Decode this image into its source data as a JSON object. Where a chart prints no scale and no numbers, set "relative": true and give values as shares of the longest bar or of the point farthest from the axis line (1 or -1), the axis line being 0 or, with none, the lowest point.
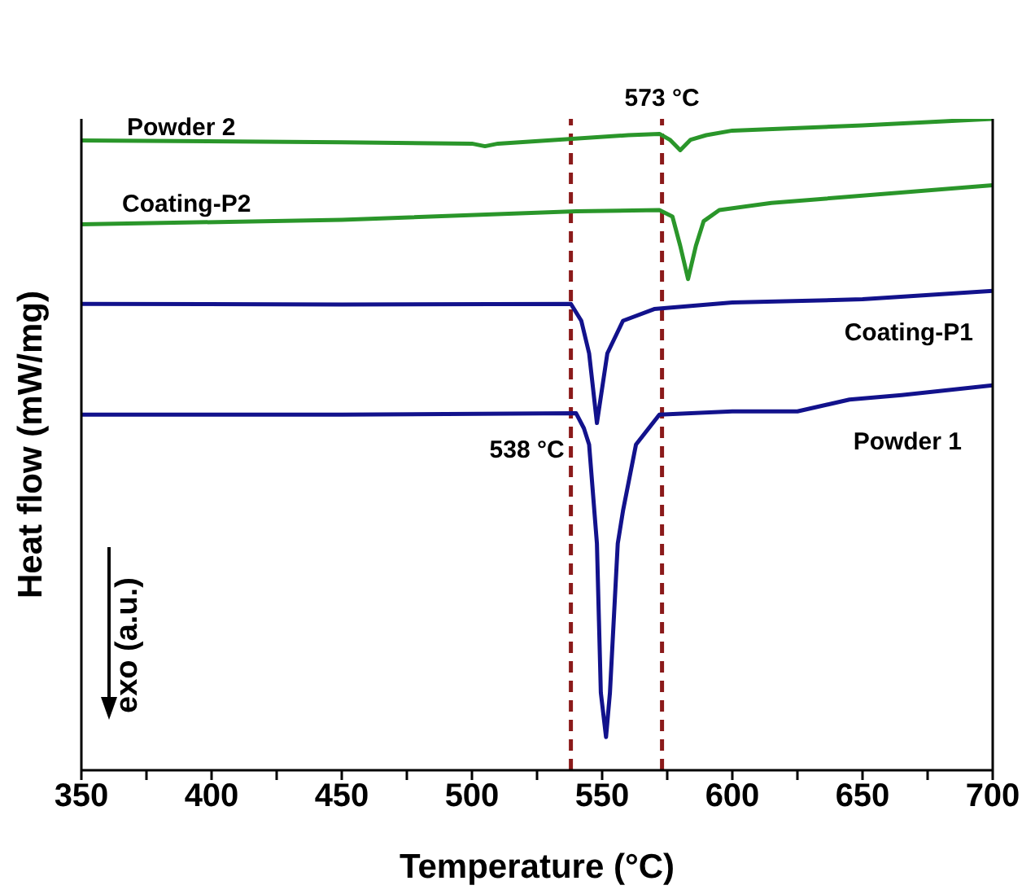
{
  "chart_data": {
    "type": "line",
    "relative": true,
    "xlabel": "Temperature (°C)",
    "ylabel": "Heat flow (mW/mg)",
    "xlim": [
      350,
      700
    ],
    "xticks": [
      350,
      {
        "value": 375,
        "label": null
      },
      400,
      {
        "value": 425,
        "label": null
      },
      450,
      {
        "value": 475,
        "label": null
      },
      500,
      {
        "value": 525,
        "label": null
      },
      550,
      {
        "value": 575,
        "label": null
      },
      600,
      {
        "value": 625,
        "label": null
      },
      650,
      {
        "value": 675,
        "label": null
      },
      700
    ],
    "grid": false,
    "legend": false,
    "marker": "none",
    "line_style": "solid",
    "annotations": [
      "exo (a.u.)"
    ],
    "ref_lines": [
      {
        "axis": "x",
        "value": 573,
        "label": "573 °C",
        "color": "#8b1a1a",
        "line_style": "dashed"
      },
      {
        "axis": "x",
        "value": 538,
        "label": "538 °C",
        "color": "#8b1a1a",
        "line_style": "dashed"
      }
    ],
    "series": [
      {
        "name": "Powder 2",
        "color": "#2a962a",
        "x": [
          350,
          450,
          500,
          505,
          510,
          560,
          572,
          576,
          580,
          584,
          590,
          600,
          650,
          700
        ],
        "values": [
          0.967,
          0.964,
          0.962,
          0.958,
          0.962,
          0.975,
          0.977,
          0.968,
          0.952,
          0.968,
          0.975,
          0.982,
          0.99,
          1.0
        ]
      },
      {
        "name": "Coating-P2",
        "color": "#2a962a",
        "x": [
          350,
          450,
          540,
          572,
          577,
          580,
          583,
          586,
          589,
          595,
          615,
          700
        ],
        "values": [
          0.838,
          0.845,
          0.858,
          0.86,
          0.85,
          0.805,
          0.754,
          0.805,
          0.843,
          0.86,
          0.871,
          0.898
        ]
      },
      {
        "name": "Coating-P1",
        "color": "#12128c",
        "x": [
          350,
          450,
          538,
          542,
          545,
          548,
          552,
          558,
          570,
          600,
          650,
          700
        ],
        "values": [
          0.716,
          0.715,
          0.716,
          0.69,
          0.64,
          0.533,
          0.64,
          0.69,
          0.708,
          0.718,
          0.723,
          0.736
        ]
      },
      {
        "name": "Powder 1",
        "color": "#12128c",
        "x": [
          350,
          450,
          540,
          543,
          545,
          548,
          549.5,
          551.5,
          553,
          556,
          558,
          563,
          572,
          600,
          625,
          645,
          665,
          700
        ],
        "values": [
          0.546,
          0.546,
          0.548,
          0.525,
          0.5,
          0.348,
          0.119,
          0.051,
          0.119,
          0.348,
          0.398,
          0.5,
          0.546,
          0.551,
          0.551,
          0.569,
          0.576,
          0.591
        ]
      }
    ]
  }
}
